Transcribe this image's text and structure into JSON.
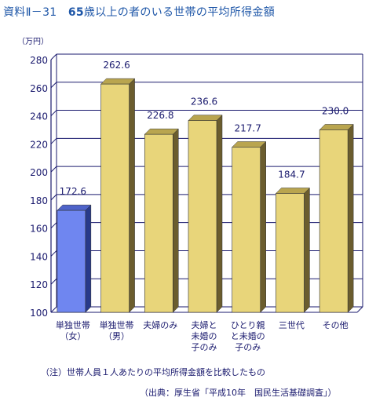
{
  "title": "資料Ⅱ－31　65歳以上の者のいる世帯の平均所得金額",
  "chart_data": {
    "type": "bar",
    "title": "65歳以上の者のいる世帯の平均所得金額",
    "ylabel": "（万円）",
    "ylim": [
      100,
      280
    ],
    "yticks": [
      100,
      120,
      140,
      160,
      180,
      200,
      220,
      240,
      260,
      280
    ],
    "grid": true,
    "categories": [
      [
        "単独世帯",
        "（女）"
      ],
      [
        "単独世帯",
        "（男）"
      ],
      [
        "夫婦のみ"
      ],
      [
        "夫婦と",
        "未婚の",
        "子のみ"
      ],
      [
        "ひとり親",
        "と未婚の",
        "子のみ"
      ],
      [
        "三世代"
      ],
      [
        "その他"
      ]
    ],
    "values": [
      172.6,
      262.6,
      226.8,
      236.6,
      217.7,
      184.7,
      230.0
    ],
    "value_labels": [
      "172.6",
      "262.6",
      "226.8",
      "236.6",
      "217.7",
      "184.7",
      "230.0"
    ],
    "colors": {
      "highlight": "#6f86f0",
      "highlight_side": "#283a8a",
      "highlight_top": "#4e63c9",
      "bar": "#e8d57a",
      "bar_side": "#6b5d2e",
      "bar_top": "#b9a54f",
      "grid": "#1a1a6e"
    }
  },
  "note": "（注）世帯人員１人あたりの平均所得金額を比較したもの",
  "source": "（出典：厚生省「平成10年　国民生活基礎調査」）"
}
